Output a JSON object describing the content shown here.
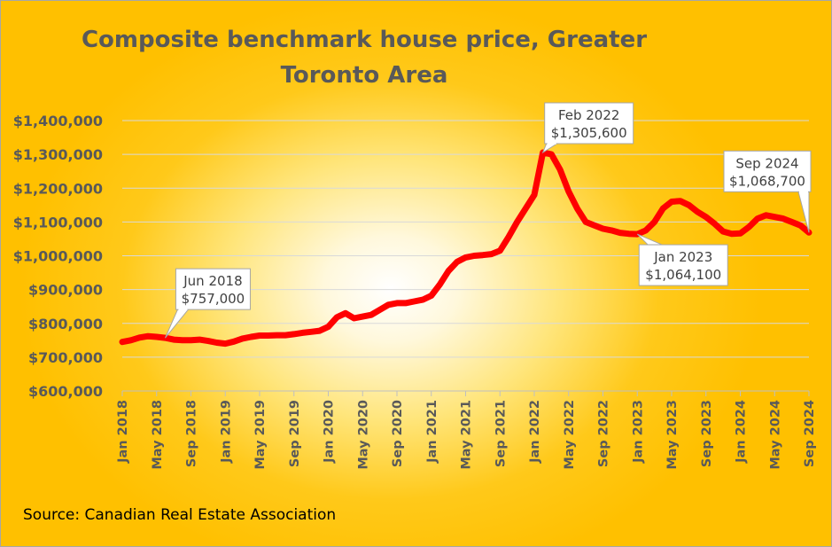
{
  "chart_data": {
    "type": "line",
    "title": "Composite benchmark house price, Greater Toronto Area",
    "source": "Source: Canadian Real Estate Association",
    "xlabel": "",
    "ylabel": "",
    "ylim": [
      600000,
      1400000
    ],
    "grid": true,
    "legend": "none",
    "line_color": "#ff0000",
    "yticks": [
      "$600,000",
      "$700,000",
      "$800,000",
      "$900,000",
      "$1,000,000",
      "$1,100,000",
      "$1,200,000",
      "$1,300,000",
      "$1,400,000"
    ],
    "xticks": [
      "Jan 2018",
      "May 2018",
      "Sep 2018",
      "Jan 2019",
      "May 2019",
      "Sep 2019",
      "Jan 2020",
      "May 2020",
      "Sep 2020",
      "Jan 2021",
      "May 2021",
      "Sep 2021",
      "Jan 2022",
      "May 2022",
      "Sep 2022",
      "Jan 2023",
      "May 2023",
      "Sep 2023",
      "Jan 2024",
      "May 2024",
      "Sep 2024"
    ],
    "series": [
      {
        "x": [
          "Jan 2018",
          "Feb 2018",
          "Mar 2018",
          "Apr 2018",
          "May 2018",
          "Jun 2018",
          "Jul 2018",
          "Aug 2018",
          "Sep 2018",
          "Oct 2018",
          "Nov 2018",
          "Dec 2018",
          "Jan 2019",
          "Feb 2019",
          "Mar 2019",
          "Apr 2019",
          "May 2019",
          "Jun 2019",
          "Jul 2019",
          "Aug 2019",
          "Sep 2019",
          "Oct 2019",
          "Nov 2019",
          "Dec 2019",
          "Jan 2020",
          "Feb 2020",
          "Mar 2020",
          "Apr 2020",
          "May 2020",
          "Jun 2020",
          "Jul 2020",
          "Aug 2020",
          "Sep 2020",
          "Oct 2020",
          "Nov 2020",
          "Dec 2020",
          "Jan 2021",
          "Feb 2021",
          "Mar 2021",
          "Apr 2021",
          "May 2021",
          "Jun 2021",
          "Jul 2021",
          "Aug 2021",
          "Sep 2021",
          "Oct 2021",
          "Nov 2021",
          "Dec 2021",
          "Jan 2022",
          "Feb 2022",
          "Mar 2022",
          "Apr 2022",
          "May 2022",
          "Jun 2022",
          "Jul 2022",
          "Aug 2022",
          "Sep 2022",
          "Oct 2022",
          "Nov 2022",
          "Dec 2022",
          "Jan 2023",
          "Feb 2023",
          "Mar 2023",
          "Apr 2023",
          "May 2023",
          "Jun 2023",
          "Jul 2023",
          "Aug 2023",
          "Sep 2023",
          "Oct 2023",
          "Nov 2023",
          "Dec 2023",
          "Jan 2024",
          "Feb 2024",
          "Mar 2024",
          "Apr 2024",
          "May 2024",
          "Jun 2024",
          "Jul 2024",
          "Aug 2024",
          "Sep 2024"
        ],
        "values": [
          745000,
          750000,
          758000,
          762000,
          760000,
          757000,
          752000,
          750000,
          750000,
          752000,
          748000,
          743000,
          740000,
          746000,
          755000,
          760000,
          764000,
          764000,
          765000,
          765000,
          768000,
          772000,
          775000,
          778000,
          790000,
          818000,
          830000,
          815000,
          820000,
          825000,
          840000,
          855000,
          860000,
          860000,
          865000,
          870000,
          882000,
          915000,
          955000,
          982000,
          995000,
          1000000,
          1002000,
          1005000,
          1015000,
          1055000,
          1100000,
          1140000,
          1180000,
          1305600,
          1300000,
          1255000,
          1190000,
          1140000,
          1100000,
          1090000,
          1080000,
          1075000,
          1068000,
          1065000,
          1064100,
          1075000,
          1100000,
          1140000,
          1160000,
          1162000,
          1150000,
          1130000,
          1115000,
          1095000,
          1072000,
          1065000,
          1066000,
          1085000,
          1110000,
          1120000,
          1115000,
          1110000,
          1100000,
          1090000,
          1068700
        ]
      }
    ],
    "annotations": [
      {
        "x": "Jun 2018",
        "lines": [
          "Jun 2018",
          "$757,000"
        ]
      },
      {
        "x": "Feb 2022",
        "lines": [
          "Feb 2022",
          "$1,305,600"
        ]
      },
      {
        "x": "Jan 2023",
        "lines": [
          "Jan 2023",
          "$1,064,100"
        ]
      },
      {
        "x": "Sep 2024",
        "lines": [
          "Sep 2024",
          "$1,068,700"
        ]
      }
    ]
  }
}
